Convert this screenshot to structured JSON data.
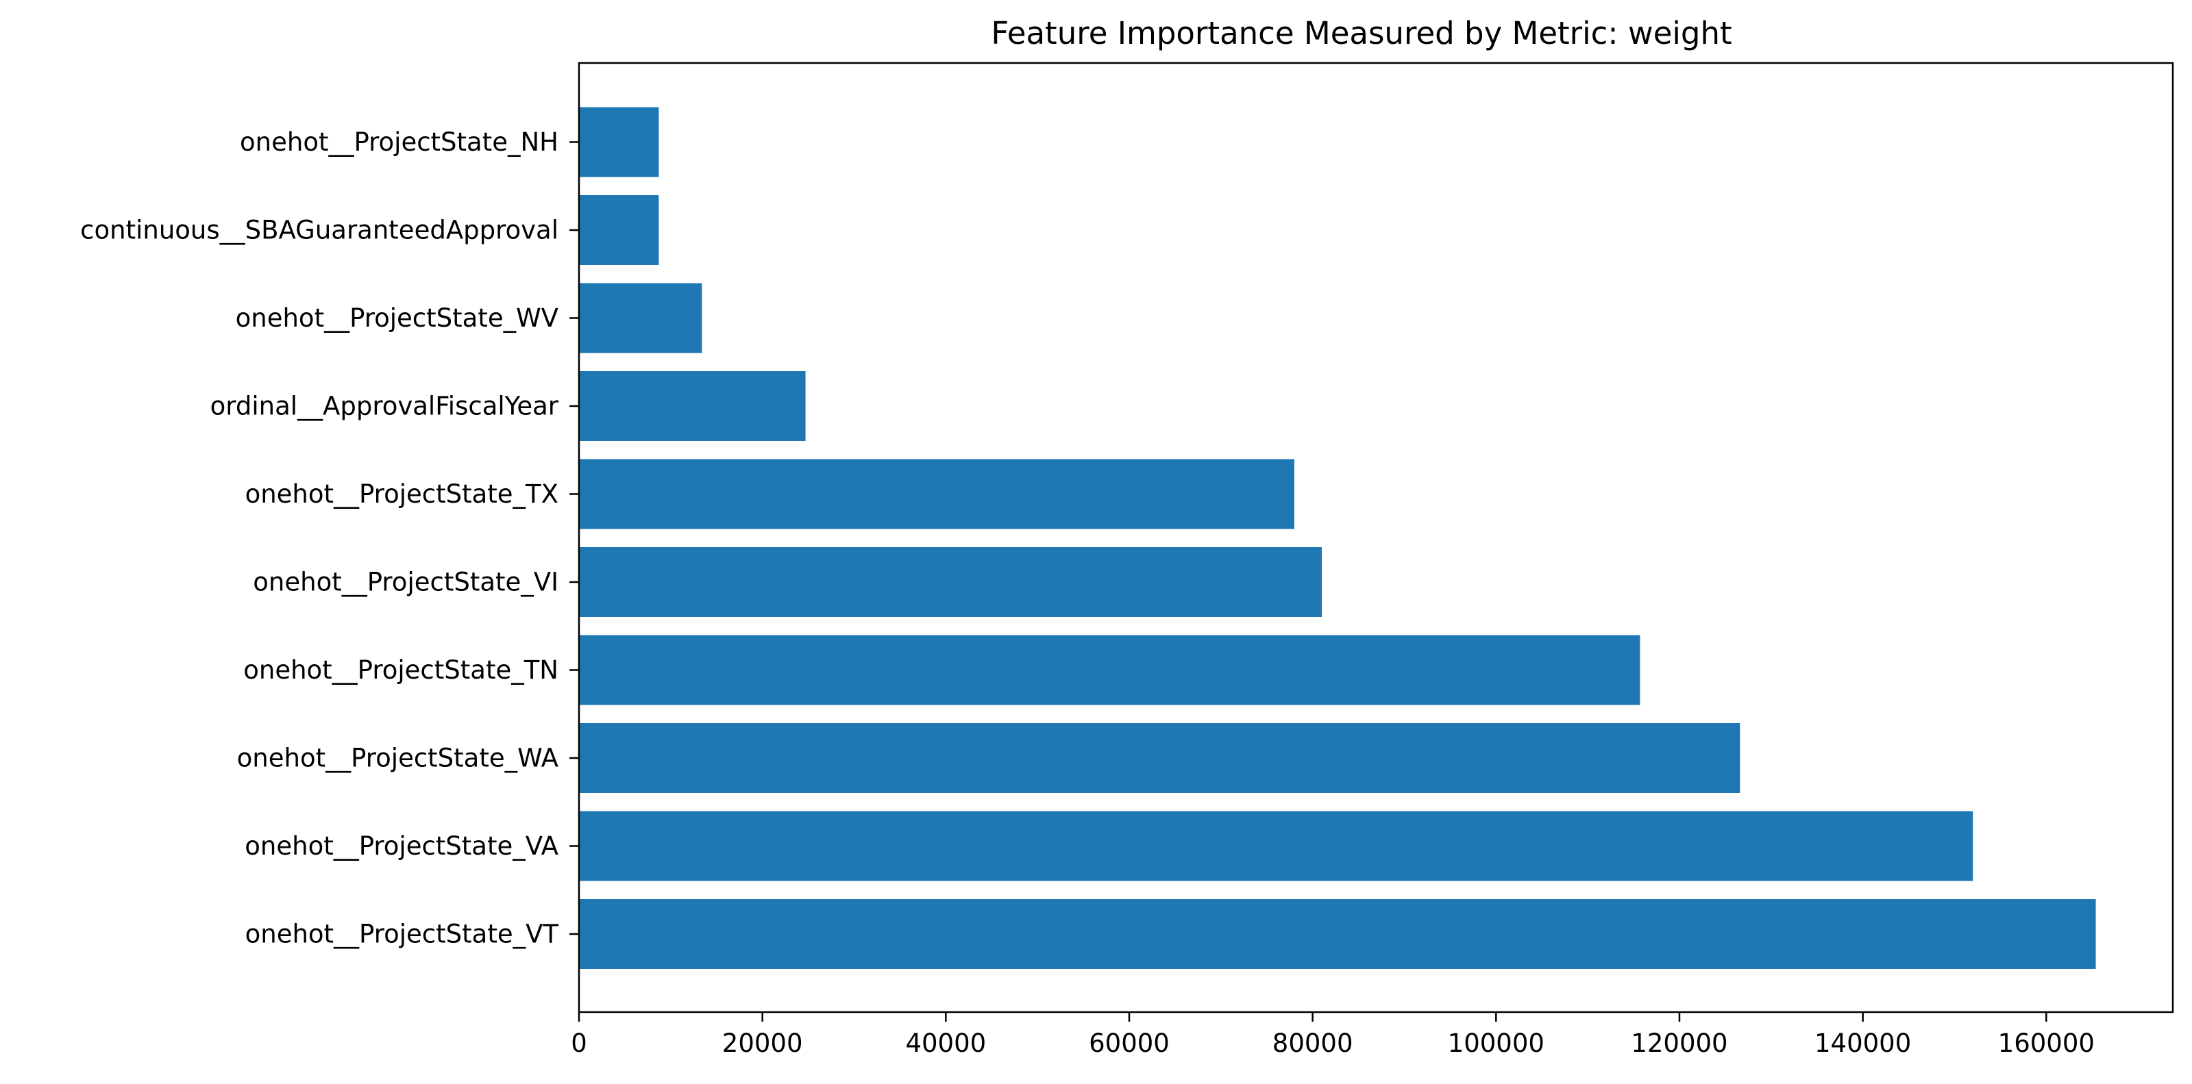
{
  "chart_data": {
    "type": "bar",
    "orientation": "horizontal",
    "title": "Feature Importance Measured by Metric: weight",
    "xlabel": "",
    "ylabel": "",
    "categories": [
      "onehot__ProjectState_VT",
      "onehot__ProjectState_VA",
      "onehot__ProjectState_WA",
      "onehot__ProjectState_TN",
      "onehot__ProjectState_VI",
      "onehot__ProjectState_TX",
      "ordinal__ApprovalFiscalYear",
      "onehot__ProjectState_WV",
      "continuous__SBAGuaranteedApproval",
      "onehot__ProjectState_NH"
    ],
    "values": [
      165400,
      152000,
      126600,
      115700,
      81000,
      78000,
      24700,
      13400,
      8700,
      8700
    ],
    "xlim": [
      0,
      173800
    ],
    "xticks": [
      0,
      20000,
      40000,
      60000,
      80000,
      100000,
      120000,
      140000,
      160000
    ],
    "xtick_labels": [
      "0",
      "20000",
      "40000",
      "60000",
      "80000",
      "100000",
      "120000",
      "140000",
      "160000"
    ],
    "grid": false,
    "legend": "none",
    "bar_color": "#1f77b4"
  }
}
